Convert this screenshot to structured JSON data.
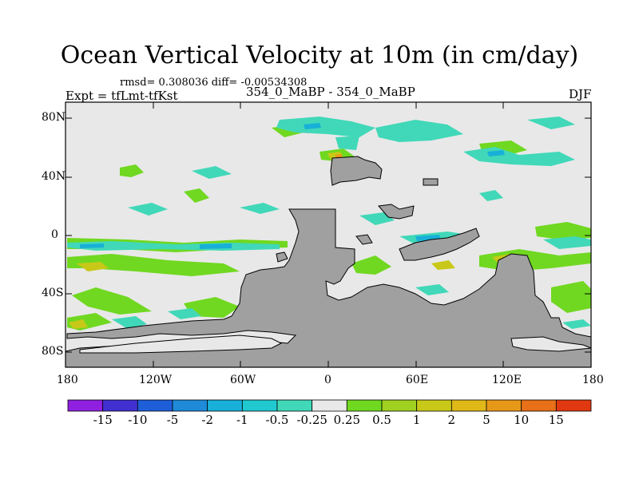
{
  "title": "Ocean Vertical Velocity at 10m (in cm/day)",
  "stats_line": "rmsd= 0.308036 diff= -0.00534308",
  "experiment": "Expt = tfLmt-tfKst",
  "runs": "354_0_MaBP - 354_0_MaBP",
  "season": "DJF",
  "y_ticks": [
    "80N",
    "40N",
    "0",
    "40S",
    "80S"
  ],
  "x_ticks": [
    "180",
    "120W",
    "60W",
    "0",
    "60E",
    "120E",
    "180"
  ],
  "colorbar": {
    "colors": [
      "#9020e0",
      "#4030d0",
      "#1e5ed8",
      "#1e8ad8",
      "#18b0d8",
      "#20c8d0",
      "#40d8b8",
      "#e8e8e8",
      "#70d820",
      "#a0d020",
      "#c8c818",
      "#e0b818",
      "#e89818",
      "#e87018",
      "#e03810"
    ],
    "labels": [
      "-15",
      "-10",
      "-5",
      "-2",
      "-1",
      "-0.5",
      "-0.25",
      "0.25",
      "0.5",
      "1",
      "2",
      "5",
      "10",
      "15"
    ]
  },
  "colors": {
    "land": "#a0a0a0",
    "ocean_neutral": "#e8e8e8"
  }
}
